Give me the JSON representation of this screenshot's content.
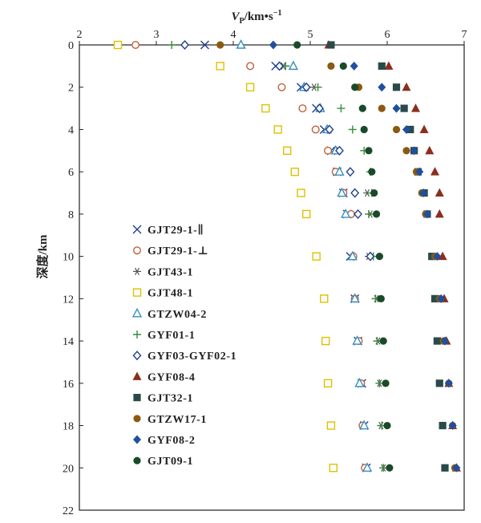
{
  "chart_data": {
    "type": "scatter",
    "title": "",
    "xlabel": {
      "main": "V",
      "sub": "P",
      "unit": "/km•s",
      "sup": "−1"
    },
    "ylabel": "深度/km",
    "xlim": [
      2,
      7
    ],
    "ylim": [
      0,
      22
    ],
    "x_axis_position": "top",
    "y_inverted": true,
    "x_ticks": [
      2,
      3,
      4,
      5,
      6,
      7
    ],
    "y_ticks": [
      0,
      2,
      4,
      6,
      8,
      10,
      12,
      14,
      16,
      18,
      20,
      22
    ],
    "grid": false,
    "legend_position": "left-inside",
    "series": [
      {
        "name": "GJT29-1-∥",
        "marker": "x",
        "color": "#1f3f8f",
        "points": [
          [
            3.63,
            0
          ],
          [
            4.55,
            1
          ],
          [
            4.88,
            2
          ],
          [
            5.08,
            3
          ],
          [
            5.18,
            4
          ],
          [
            5.27,
            5
          ],
          [
            5.35,
            6
          ],
          [
            5.43,
            7
          ],
          [
            5.48,
            8
          ],
          [
            5.52,
            10
          ],
          [
            5.58,
            12
          ],
          [
            5.62,
            14
          ],
          [
            5.67,
            16
          ],
          [
            5.7,
            18
          ],
          [
            5.73,
            20
          ]
        ]
      },
      {
        "name": "GJT29-1-⊥",
        "marker": "circle-open",
        "color": "#c0603a",
        "points": [
          [
            2.73,
            0
          ],
          [
            4.22,
            1
          ],
          [
            4.63,
            2
          ],
          [
            4.9,
            3
          ],
          [
            5.07,
            4
          ],
          [
            5.23,
            5
          ],
          [
            5.33,
            6
          ],
          [
            5.43,
            7
          ],
          [
            5.53,
            8
          ],
          [
            5.56,
            10
          ],
          [
            5.58,
            12
          ],
          [
            5.63,
            14
          ],
          [
            5.66,
            16
          ],
          [
            5.68,
            18
          ],
          [
            5.71,
            20
          ]
        ]
      },
      {
        "name": "GJT43-1",
        "marker": "asterisk",
        "color": "#555555",
        "points": [
          [
            4.65,
            1
          ],
          [
            5.05,
            2
          ],
          [
            5.12,
            3
          ],
          [
            5.23,
            4
          ],
          [
            5.37,
            5
          ],
          [
            5.74,
            7
          ],
          [
            5.78,
            8
          ],
          [
            5.76,
            10
          ],
          [
            5.86,
            12
          ],
          [
            5.88,
            14
          ],
          [
            5.9,
            16
          ],
          [
            5.92,
            18
          ],
          [
            5.95,
            20
          ]
        ]
      },
      {
        "name": "GJT48-1",
        "marker": "square-open",
        "color": "#e0c000",
        "points": [
          [
            2.5,
            0
          ],
          [
            3.83,
            1
          ],
          [
            4.22,
            2
          ],
          [
            4.42,
            3
          ],
          [
            4.58,
            4
          ],
          [
            4.7,
            5
          ],
          [
            4.8,
            6
          ],
          [
            4.88,
            7
          ],
          [
            4.95,
            8
          ],
          [
            5.08,
            10
          ],
          [
            5.18,
            12
          ],
          [
            5.2,
            14
          ],
          [
            5.23,
            16
          ],
          [
            5.27,
            18
          ],
          [
            5.3,
            20
          ]
        ]
      },
      {
        "name": "GTZW04-2",
        "marker": "triangle-open",
        "color": "#3a8fc0",
        "points": [
          [
            4.1,
            0
          ],
          [
            4.78,
            1
          ],
          [
            4.92,
            2
          ],
          [
            5.13,
            3
          ],
          [
            5.22,
            4
          ],
          [
            5.33,
            5
          ],
          [
            5.38,
            6
          ],
          [
            5.41,
            7
          ],
          [
            5.46,
            8
          ],
          [
            5.55,
            10
          ],
          [
            5.58,
            12
          ],
          [
            5.61,
            14
          ],
          [
            5.64,
            16
          ],
          [
            5.7,
            18
          ],
          [
            5.74,
            20
          ]
        ]
      },
      {
        "name": "GYF01-1",
        "marker": "plus",
        "color": "#3a8a3a",
        "points": [
          [
            3.2,
            0
          ],
          [
            4.68,
            1
          ],
          [
            5.1,
            2
          ],
          [
            5.4,
            3
          ],
          [
            5.55,
            4
          ],
          [
            5.7,
            5
          ],
          [
            5.78,
            6
          ],
          [
            5.8,
            7
          ],
          [
            5.76,
            8
          ],
          [
            5.82,
            10
          ],
          [
            5.85,
            12
          ],
          [
            5.87,
            14
          ],
          [
            5.9,
            16
          ],
          [
            5.93,
            18
          ],
          [
            5.95,
            20
          ]
        ]
      },
      {
        "name": "GYF03-GYF02-1",
        "marker": "diamond-open",
        "color": "#1f3f8f",
        "points": [
          [
            3.37,
            0
          ],
          [
            4.6,
            1
          ],
          [
            4.95,
            2
          ],
          [
            5.12,
            3
          ],
          [
            5.25,
            4
          ],
          [
            5.38,
            5
          ],
          [
            5.52,
            6
          ],
          [
            5.58,
            7
          ],
          [
            5.62,
            8
          ],
          [
            5.78,
            10
          ]
        ]
      },
      {
        "name": "GYF08-4",
        "marker": "triangle-filled",
        "color": "#8b2e1e",
        "points": [
          [
            5.24,
            0
          ],
          [
            6.02,
            1
          ],
          [
            6.25,
            2
          ],
          [
            6.37,
            3
          ],
          [
            6.48,
            4
          ],
          [
            6.55,
            5
          ],
          [
            6.62,
            6
          ],
          [
            6.68,
            7
          ],
          [
            6.68,
            8
          ],
          [
            6.72,
            10
          ],
          [
            6.74,
            12
          ],
          [
            6.77,
            14
          ],
          [
            6.8,
            16
          ],
          [
            6.85,
            18
          ],
          [
            6.9,
            20
          ]
        ]
      },
      {
        "name": "GJT32-1",
        "marker": "square-filled",
        "color": "#2a4a4a",
        "points": [
          [
            5.27,
            0
          ],
          [
            5.93,
            1
          ],
          [
            6.12,
            2
          ],
          [
            6.22,
            3
          ],
          [
            6.3,
            4
          ],
          [
            6.35,
            5
          ],
          [
            6.4,
            6
          ],
          [
            6.48,
            7
          ],
          [
            6.52,
            8
          ],
          [
            6.58,
            10
          ],
          [
            6.62,
            12
          ],
          [
            6.65,
            14
          ],
          [
            6.68,
            16
          ],
          [
            6.72,
            18
          ],
          [
            6.75,
            20
          ]
        ]
      },
      {
        "name": "GTZW17-1",
        "marker": "circle-filled",
        "color": "#8a5a10",
        "points": [
          [
            3.83,
            0
          ],
          [
            5.27,
            1
          ],
          [
            5.63,
            2
          ],
          [
            5.93,
            3
          ],
          [
            6.12,
            4
          ],
          [
            6.25,
            5
          ],
          [
            6.38,
            6
          ],
          [
            6.45,
            7
          ],
          [
            6.5,
            8
          ],
          [
            6.62,
            10
          ],
          [
            6.68,
            12
          ],
          [
            6.73,
            14
          ],
          [
            6.8,
            16
          ],
          [
            6.85,
            18
          ],
          [
            6.88,
            20
          ]
        ]
      },
      {
        "name": "GYF08-2",
        "marker": "diamond-filled",
        "color": "#1f4f9f",
        "points": [
          [
            4.52,
            0
          ],
          [
            5.57,
            1
          ],
          [
            5.93,
            2
          ],
          [
            6.12,
            3
          ],
          [
            6.25,
            4
          ],
          [
            6.35,
            5
          ],
          [
            6.42,
            6
          ],
          [
            6.47,
            7
          ],
          [
            6.52,
            8
          ],
          [
            6.65,
            10
          ],
          [
            6.7,
            12
          ],
          [
            6.75,
            14
          ],
          [
            6.8,
            16
          ],
          [
            6.85,
            18
          ],
          [
            6.9,
            20
          ]
        ]
      },
      {
        "name": "GJT09-1",
        "marker": "circle-filled",
        "color": "#1a4a2a",
        "points": [
          [
            4.83,
            0
          ],
          [
            5.43,
            1
          ],
          [
            5.58,
            2
          ],
          [
            5.68,
            3
          ],
          [
            5.7,
            4
          ],
          [
            5.76,
            5
          ],
          [
            5.8,
            6
          ],
          [
            5.83,
            7
          ],
          [
            5.86,
            8
          ],
          [
            5.9,
            10
          ],
          [
            5.92,
            12
          ],
          [
            5.95,
            14
          ],
          [
            5.98,
            16
          ],
          [
            6.0,
            18
          ],
          [
            6.03,
            20
          ]
        ]
      }
    ]
  }
}
